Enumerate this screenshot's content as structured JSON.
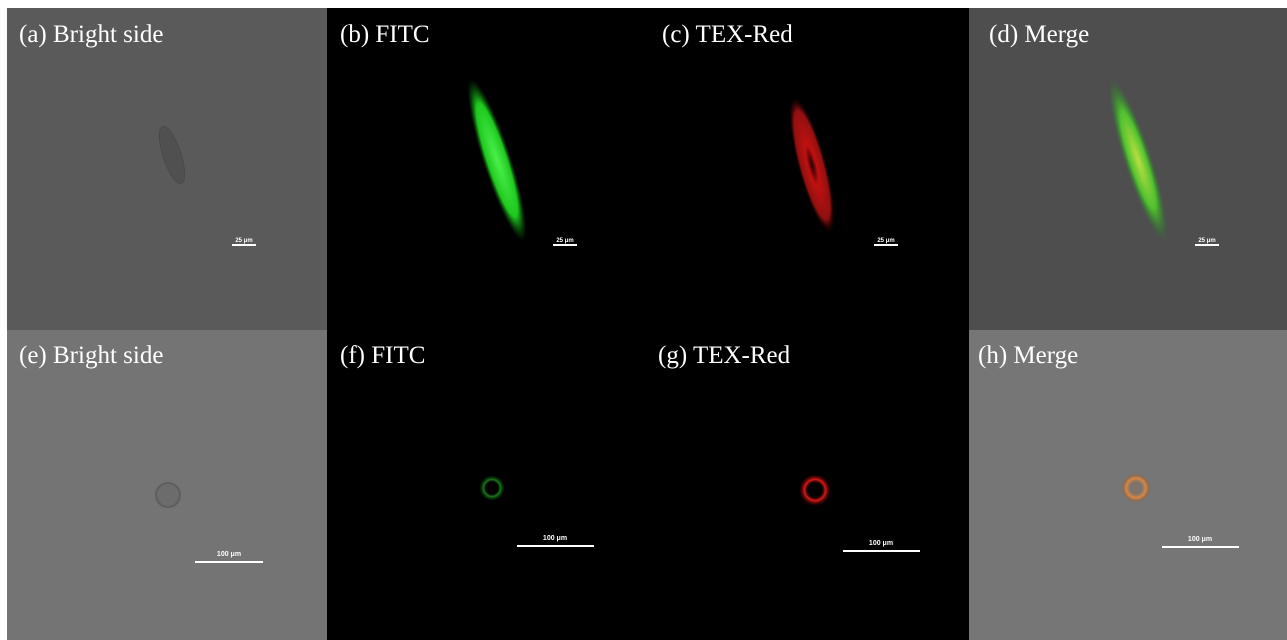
{
  "panels": [
    {
      "label": "(a) Bright side",
      "scale_bar": "25 μm"
    },
    {
      "label": "(b) FITC",
      "scale_bar": "25 μm"
    },
    {
      "label": "(c) TEX-Red",
      "scale_bar": "25 μm"
    },
    {
      "label": "(d) Merge",
      "scale_bar": "25 μm"
    },
    {
      "label": "(e) Bright side",
      "scale_bar": "100 μm"
    },
    {
      "label": "(f) FITC",
      "scale_bar": "100 μm"
    },
    {
      "label": "(g) TEX-Red",
      "scale_bar": "100 μm"
    },
    {
      "label": "(h) Merge",
      "scale_bar": "100 μm"
    }
  ]
}
